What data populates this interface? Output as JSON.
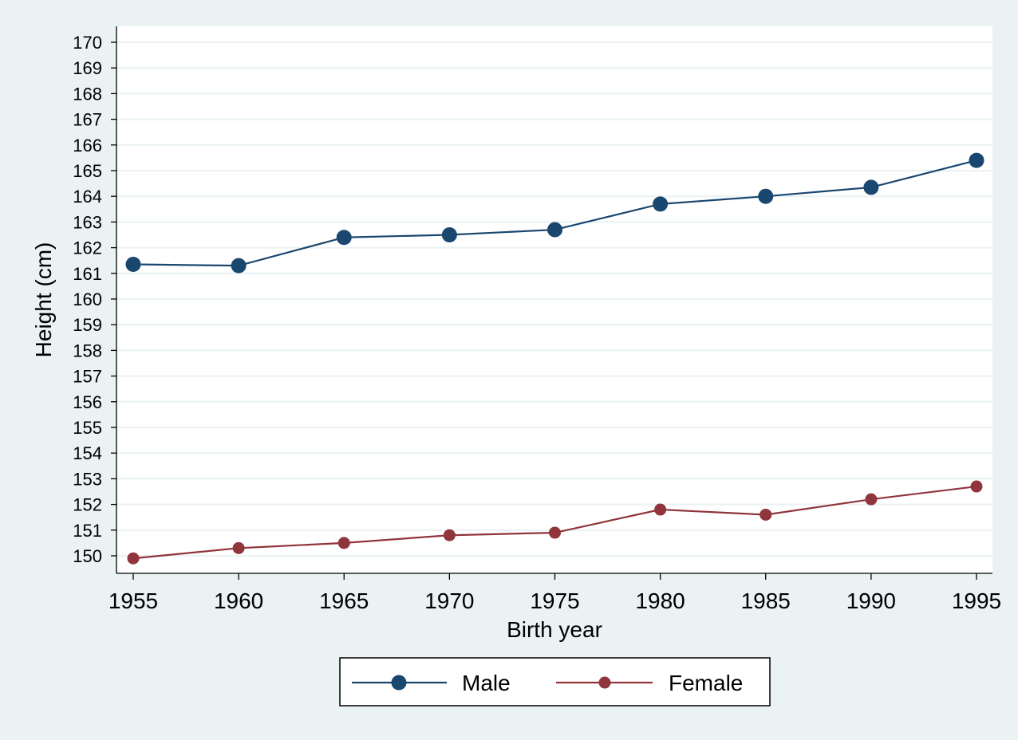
{
  "chart_data": {
    "type": "line",
    "title": "",
    "xlabel": "Birth year",
    "ylabel": "Height (cm)",
    "x": [
      1955,
      1960,
      1965,
      1970,
      1975,
      1980,
      1985,
      1990,
      1995
    ],
    "xlim": [
      1955,
      1995
    ],
    "ylim": [
      150,
      170
    ],
    "x_ticks": [
      1955,
      1960,
      1965,
      1970,
      1975,
      1980,
      1985,
      1990,
      1995
    ],
    "y_ticks": [
      150,
      151,
      152,
      153,
      154,
      155,
      156,
      157,
      158,
      159,
      160,
      161,
      162,
      163,
      164,
      165,
      166,
      167,
      168,
      169,
      170
    ],
    "grid": true,
    "legend_position": "bottom",
    "series": [
      {
        "name": "Male",
        "color": "#1a476f",
        "values": [
          161.35,
          161.3,
          162.4,
          162.5,
          162.7,
          163.7,
          164.0,
          164.35,
          165.4
        ]
      },
      {
        "name": "Female",
        "color": "#90353b",
        "values": [
          149.9,
          150.3,
          150.5,
          150.8,
          150.9,
          151.8,
          151.6,
          152.2,
          152.7
        ]
      }
    ]
  }
}
